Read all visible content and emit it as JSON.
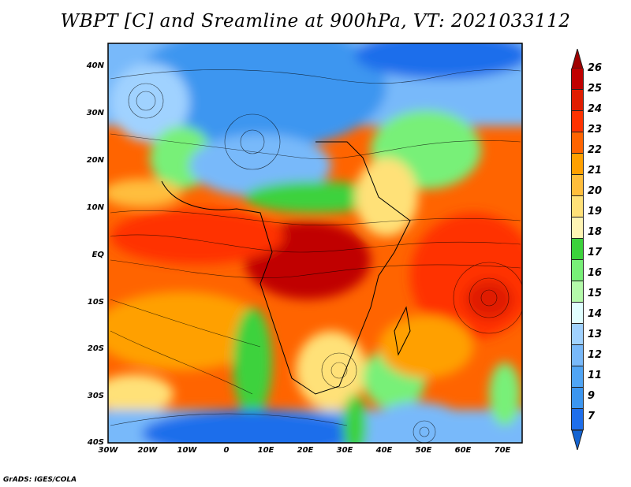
{
  "title": "WBPT [C] and Sreamline at 900hPa, VT: 2021033112",
  "credit": "GrADS: IGES/COLA",
  "map": {
    "lat_labels": [
      "40N",
      "30N",
      "20N",
      "10N",
      "EQ",
      "10S",
      "20S",
      "30S",
      "40S"
    ],
    "lat_values": [
      40,
      30,
      20,
      10,
      0,
      -10,
      -20,
      -30,
      -40
    ],
    "lon_labels": [
      "30W",
      "20W",
      "10W",
      "0",
      "10E",
      "20E",
      "30E",
      "40E",
      "50E",
      "60E",
      "70E"
    ],
    "lon_values": [
      -30,
      -20,
      -10,
      0,
      10,
      20,
      30,
      40,
      50,
      60,
      70
    ],
    "lon_range": [
      -30,
      75
    ],
    "lat_range": [
      -40,
      45
    ]
  },
  "colorbar": {
    "labels": [
      "26",
      "25",
      "24",
      "23",
      "22",
      "21",
      "20",
      "19",
      "18",
      "17",
      "16",
      "15",
      "14",
      "13",
      "12",
      "11",
      "9",
      "7"
    ],
    "top_arrow_color": "#a00000",
    "bottom_arrow_color": "#1464d2",
    "colors": [
      "#c00000",
      "#e01c00",
      "#ff3200",
      "#ff6400",
      "#ffa000",
      "#ffbe3c",
      "#ffe178",
      "#fff5b4",
      "#3cd23c",
      "#78f078",
      "#b4faaa",
      "#e1ffff",
      "#a0d2ff",
      "#78b9fa",
      "#50a5f5",
      "#3c96f0",
      "#1e6eeb"
    ]
  }
}
